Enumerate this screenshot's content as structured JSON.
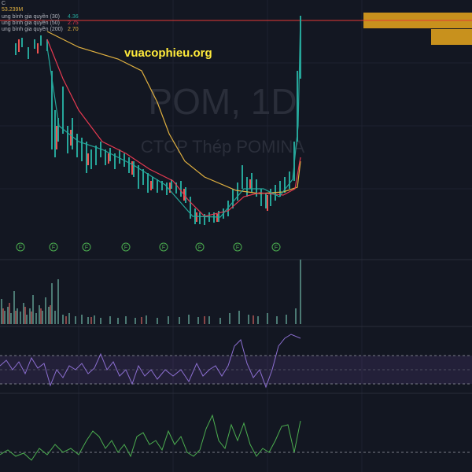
{
  "header": {
    "symbol_prefix": "C",
    "volume": "53.239M"
  },
  "legend": [
    {
      "label": "ung bình gia quyền (30)",
      "value": "4.36"
    },
    {
      "label": "ung bình gia quyền (50)",
      "value": "2.75"
    },
    {
      "label": "ung bình gia quyền (200)",
      "value": "2.70"
    }
  ],
  "watermark": {
    "symbol": "POM, 1D",
    "company": "CTCP Thép POMINA"
  },
  "site": "vuacophieu.org",
  "markers": [
    "F",
    "F",
    "F",
    "F",
    "F",
    "F",
    "F",
    "F"
  ]
}
